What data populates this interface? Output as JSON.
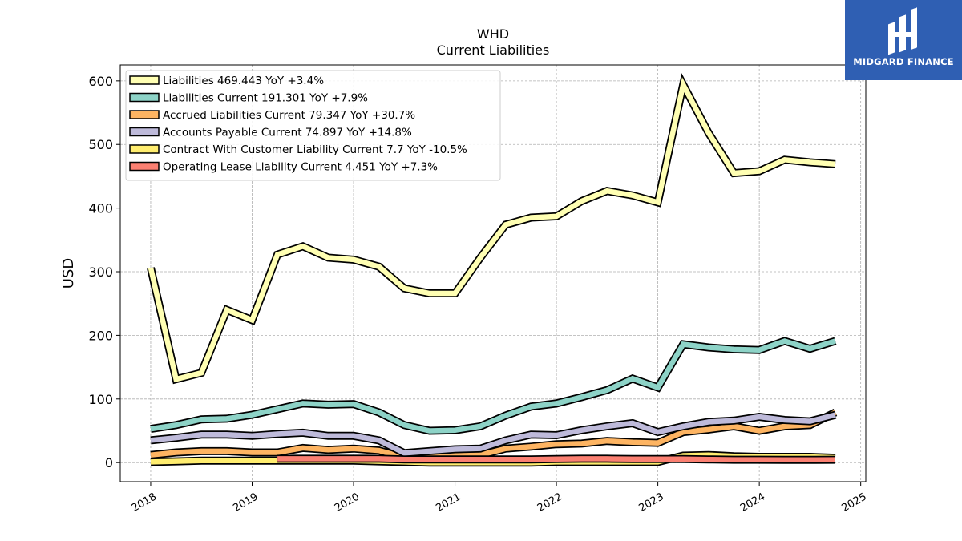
{
  "logo": {
    "text": "MIDGARD FINANCE",
    "icon": "midgard-logo-icon",
    "color": "#2f5fb3"
  },
  "chart_data": {
    "type": "line",
    "title": "WHD",
    "subtitle": "Current  Liabilities",
    "ylabel": "USD",
    "xlabel": "",
    "xlim": [
      2017.7,
      2025.05
    ],
    "ylim": [
      -30,
      625
    ],
    "yticks": [
      0,
      100,
      200,
      300,
      400,
      500,
      600
    ],
    "xticks": [
      2018,
      2019,
      2020,
      2021,
      2022,
      2023,
      2024,
      2025
    ],
    "xtick_labels": [
      "2018",
      "2019",
      "2020",
      "2021",
      "2022",
      "2023",
      "2024",
      "2025"
    ],
    "grid": true,
    "legend_position": "top-left",
    "series": [
      {
        "name": "Liabilities  469.443 YoY +3.4%",
        "color": "#ffffb3",
        "x": [
          2018.0,
          2018.25,
          2018.5,
          2018.75,
          2019.0,
          2019.25,
          2019.5,
          2019.75,
          2020.0,
          2020.25,
          2020.5,
          2020.75,
          2021.0,
          2021.25,
          2021.5,
          2021.75,
          2022.0,
          2022.25,
          2022.5,
          2022.75,
          2023.0,
          2023.25,
          2023.5,
          2023.75,
          2024.0,
          2024.25,
          2024.5,
          2024.75
        ],
        "values": [
          306,
          131,
          141,
          240,
          224,
          327,
          340,
          322,
          319,
          308,
          274,
          266,
          266,
          322,
          374,
          385,
          387,
          411,
          427,
          420,
          409,
          594,
          518,
          455,
          458,
          476,
          472,
          469
        ]
      },
      {
        "name": "Liabilities Current  191.301 YoY +7.9%",
        "color": "#8dd3c7",
        "x": [
          2018.0,
          2018.25,
          2018.5,
          2018.75,
          2019.0,
          2019.25,
          2019.5,
          2019.75,
          2020.0,
          2020.25,
          2020.5,
          2020.75,
          2021.0,
          2021.25,
          2021.5,
          2021.75,
          2022.0,
          2022.25,
          2022.5,
          2022.75,
          2023.0,
          2023.25,
          2023.5,
          2023.75,
          2024.0,
          2024.25,
          2024.5,
          2024.75
        ],
        "values": [
          53,
          59,
          68,
          69,
          75,
          84,
          93,
          91,
          92,
          79,
          59,
          50,
          51,
          57,
          74,
          88,
          93,
          103,
          114,
          132,
          118,
          186,
          181,
          178,
          177,
          191,
          179,
          191
        ]
      },
      {
        "name": "Accrued Liabilities Current  79.347 YoY +30.7%",
        "color": "#fdb462",
        "x": [
          2018.0,
          2018.25,
          2018.5,
          2018.75,
          2019.0,
          2019.25,
          2019.5,
          2019.75,
          2020.0,
          2020.25,
          2020.5,
          2020.75,
          2021.0,
          2021.25,
          2021.5,
          2021.75,
          2022.0,
          2022.25,
          2022.5,
          2022.75,
          2023.0,
          2023.25,
          2023.5,
          2023.75,
          2024.0,
          2024.25,
          2024.5,
          2024.75
        ],
        "values": [
          12,
          16,
          18,
          18,
          16,
          16,
          23,
          20,
          22,
          19,
          8,
          8,
          11,
          12,
          22,
          25,
          29,
          30,
          34,
          32,
          31,
          48,
          52,
          57,
          50,
          57,
          59,
          79
        ]
      },
      {
        "name": "Accounts Payable Current  74.897 YoY +14.8%",
        "color": "#bebada",
        "x": [
          2018.0,
          2018.25,
          2018.5,
          2018.75,
          2019.0,
          2019.25,
          2019.5,
          2019.75,
          2020.0,
          2020.25,
          2020.5,
          2020.75,
          2021.0,
          2021.25,
          2021.5,
          2021.75,
          2022.0,
          2022.25,
          2022.5,
          2022.75,
          2023.0,
          2023.25,
          2023.5,
          2023.75,
          2024.0,
          2024.25,
          2024.5,
          2024.75
        ],
        "values": [
          35,
          39,
          44,
          44,
          42,
          45,
          47,
          42,
          42,
          35,
          15,
          18,
          21,
          22,
          35,
          44,
          43,
          51,
          57,
          62,
          48,
          57,
          64,
          66,
          72,
          67,
          65,
          75
        ]
      },
      {
        "name": "Contract With Customer Liability Current  7.7 YoY -10.5%",
        "color": "#ffed6f",
        "x": [
          2018.0,
          2018.25,
          2018.5,
          2018.75,
          2019.0,
          2019.25,
          2019.5,
          2019.75,
          2020.0,
          2020.25,
          2020.5,
          2020.75,
          2021.0,
          2021.25,
          2021.5,
          2021.75,
          2022.0,
          2022.25,
          2022.5,
          2022.75,
          2023.0,
          2023.25,
          2023.5,
          2023.75,
          2024.0,
          2024.25,
          2024.5,
          2024.75
        ],
        "values": [
          1,
          2,
          3,
          3,
          3,
          3,
          3,
          3,
          3,
          2,
          1,
          0,
          0,
          0,
          0,
          0,
          1,
          1,
          1,
          1,
          1,
          11,
          12,
          10,
          9,
          9,
          9,
          7.7
        ]
      },
      {
        "name": "Operating Lease Liability Current  4.451 YoY +7.3%",
        "color": "#fb8072",
        "x": [
          2019.25,
          2019.5,
          2019.75,
          2020.0,
          2020.25,
          2020.5,
          2020.75,
          2021.0,
          2021.25,
          2021.5,
          2021.75,
          2022.0,
          2022.25,
          2022.5,
          2022.75,
          2023.0,
          2023.25,
          2023.5,
          2023.75,
          2024.0,
          2024.25,
          2024.5,
          2024.75
        ],
        "values": [
          6,
          6,
          6,
          6,
          6,
          5,
          5,
          5,
          5,
          5,
          5,
          5.5,
          6,
          6,
          5.5,
          5.5,
          5.5,
          5,
          4.5,
          4.5,
          4.3,
          4.3,
          4.451
        ]
      }
    ]
  }
}
